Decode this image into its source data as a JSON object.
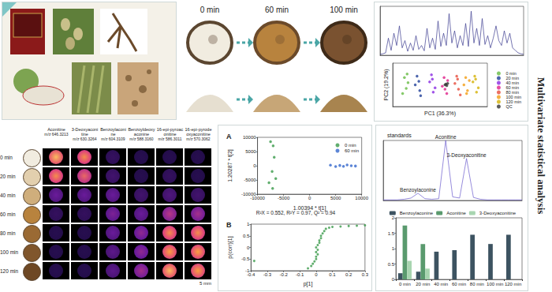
{
  "side_title": "Multivariate statistical analysis",
  "processing": {
    "times": [
      "0 min",
      "60 min",
      "100 min"
    ]
  },
  "msi": {
    "rows": [
      "0 min",
      "20 min",
      "40 min",
      "60 min",
      "80 min",
      "100 min",
      "120 min"
    ],
    "columns": [
      {
        "name": "Aconitine",
        "mz": "m/z 646.3213"
      },
      {
        "name": "3-Deoxyaconitine",
        "mz": "m/z 630.3264"
      },
      {
        "name": "Benzoylaconine",
        "mz": "m/z 604.3109"
      },
      {
        "name": "Benzoyldeoxyaconine",
        "mz": "m/z 588.3160"
      },
      {
        "name": "16-epi-pyroaconitine",
        "mz": "m/z 586.3011"
      },
      {
        "name": "16-epi-pyrodeoxyaconitine",
        "mz": "m/z 570.3062"
      }
    ],
    "scale_bar": "5 mm",
    "intensity": [
      [
        0.9,
        0.8,
        0.1,
        0.05,
        0.05,
        0.05
      ],
      [
        0.8,
        0.7,
        0.15,
        0.05,
        0.1,
        0.05
      ],
      [
        0.3,
        0.3,
        0.3,
        0.15,
        0.2,
        0.15
      ],
      [
        0.1,
        0.1,
        0.35,
        0.3,
        0.5,
        0.45
      ],
      [
        0.05,
        0.05,
        0.3,
        0.4,
        0.8,
        0.8
      ],
      [
        0.05,
        0.05,
        0.25,
        0.4,
        0.85,
        0.85
      ],
      [
        0.05,
        0.05,
        0.25,
        0.45,
        0.9,
        0.85
      ]
    ]
  },
  "chart_data": [
    {
      "type": "line",
      "color": "#3b3b8f",
      "tick_labels": false,
      "xlim": [
        0,
        26
      ],
      "ylim": [
        0,
        100
      ],
      "x": [
        0,
        0.5,
        1,
        1.5,
        2,
        2.5,
        3,
        3.5,
        4,
        4.5,
        5,
        5.5,
        6,
        6.5,
        7,
        7.5,
        8,
        8.5,
        9,
        9.5,
        10,
        10.5,
        11,
        11.5,
        12,
        12.5,
        13,
        13.5,
        14,
        14.5,
        15,
        15.5,
        16,
        16.5,
        17,
        17.5,
        18,
        18.5,
        19,
        19.5,
        20,
        20.5,
        21,
        21.5,
        22,
        22.5,
        23,
        23.5,
        24,
        24.5,
        25,
        25.5,
        26
      ],
      "values": [
        2,
        3,
        5,
        35,
        10,
        45,
        20,
        60,
        15,
        30,
        8,
        25,
        10,
        40,
        12,
        20,
        9,
        55,
        15,
        35,
        12,
        70,
        18,
        45,
        20,
        85,
        25,
        50,
        15,
        40,
        20,
        65,
        18,
        90,
        25,
        55,
        20,
        75,
        22,
        40,
        15,
        35,
        60,
        30,
        20,
        50,
        25,
        45,
        15,
        10,
        5,
        3,
        2
      ]
    },
    {
      "type": "scatter",
      "x_label": "PC1 (36.3%)",
      "y_label": "PC2 (19.2%)",
      "tick_labels": false,
      "legend": "right",
      "xlim": [
        -55,
        50
      ],
      "ylim": [
        -30,
        30
      ],
      "series": [
        {
          "name": "0 min",
          "color": "#66bb44",
          "x": [
            -42,
            -40,
            -38,
            -44,
            -39
          ],
          "values": [
            10,
            -5,
            3,
            -12,
            15
          ]
        },
        {
          "name": "20 min",
          "color": "#1f3f99",
          "x": [
            -28,
            -25,
            -30,
            -26,
            -24
          ],
          "values": [
            12,
            -8,
            0,
            5,
            -15
          ]
        },
        {
          "name": "40 min",
          "color": "#8a2be2",
          "x": [
            -12,
            -10,
            -14,
            -8,
            -11
          ],
          "values": [
            14,
            -10,
            4,
            -4,
            8
          ]
        },
        {
          "name": "60 min",
          "color": "#e0218a",
          "x": [
            2,
            5,
            0,
            6,
            3
          ],
          "values": [
            10,
            -12,
            -2,
            6,
            -6
          ]
        },
        {
          "name": "80 min",
          "color": "#e74c3c",
          "x": [
            16,
            18,
            14,
            20,
            17
          ],
          "values": [
            12,
            -6,
            2,
            -14,
            8
          ]
        },
        {
          "name": "100 min",
          "color": "#f39c12",
          "x": [
            26,
            28,
            24,
            30,
            27
          ],
          "values": [
            10,
            -8,
            0,
            6,
            -12
          ]
        },
        {
          "name": "120 min",
          "color": "#d4b106",
          "x": [
            36,
            38,
            34,
            40,
            37
          ],
          "values": [
            12,
            -10,
            4,
            -4,
            8
          ]
        },
        {
          "name": "QC",
          "color": "#333333",
          "x": [
            4,
            5,
            3,
            6
          ],
          "values": [
            1,
            -1,
            0,
            2
          ]
        }
      ]
    },
    {
      "type": "scatter",
      "title": "A",
      "x_label": "1.00394 * t[1]",
      "y_label": "1.20287 * t[2]",
      "annotation": "R²X = 0.552, R²Y = 0.97, Q² = 0.94",
      "legend": "top-right",
      "xlim": [
        -10000,
        10000
      ],
      "xticks": [
        -10000,
        -5000,
        0,
        5000,
        10000
      ],
      "ylim": [
        -10000,
        10000
      ],
      "yticks": [
        -10000,
        -5000,
        0,
        5000,
        10000
      ],
      "series": [
        {
          "name": "0 min",
          "color": "#3a9a4a",
          "x": [
            -7500,
            -7000,
            -6800,
            -7200,
            -6500,
            -7800,
            -7100
          ],
          "values": [
            8500,
            7000,
            3000,
            -2000,
            -4500,
            -6000,
            -8000
          ]
        },
        {
          "name": "60 min",
          "color": "#3366cc",
          "x": [
            4000,
            5000,
            5800,
            6500,
            7200,
            8000,
            8800
          ],
          "values": [
            200,
            -300,
            100,
            -200,
            300,
            0,
            -100
          ]
        }
      ]
    },
    {
      "type": "scatter",
      "title": "B",
      "x_label": "p[1]",
      "y_label": "p(corr)[1]",
      "color": "#3a9a4a",
      "xlim": [
        -0.4,
        0.3
      ],
      "xticks": [
        -0.4,
        -0.3,
        -0.2,
        -0.1,
        0,
        0.1,
        0.2,
        0.3
      ],
      "ylim": [
        -1,
        1
      ],
      "yticks": [
        -1,
        -0.5,
        0,
        0.5,
        1
      ],
      "x": [
        -0.38,
        -0.05,
        -0.03,
        -0.02,
        -0.01,
        0,
        0,
        0.01,
        0,
        0.01,
        0,
        0.01,
        0.02,
        0.02,
        0.03,
        0.03,
        0.04,
        0.05,
        0.06,
        0.08,
        0.1,
        0.15,
        0.2,
        0.25,
        0.3
      ],
      "values": [
        -0.58,
        -0.9,
        -0.8,
        -0.7,
        -0.6,
        -0.5,
        -0.4,
        -0.3,
        -0.2,
        -0.1,
        0,
        0.1,
        0.2,
        0.3,
        0.4,
        0.5,
        0.6,
        0.7,
        0.8,
        0.85,
        0.88,
        0.9,
        0.92,
        0.93,
        0.95
      ]
    },
    {
      "type": "line",
      "title": "standards",
      "color": "#6a5acd",
      "tick_labels": false,
      "xlim": [
        0,
        10
      ],
      "ylim": [
        0,
        100
      ],
      "x": [
        0,
        0.5,
        1,
        1.5,
        2,
        2.5,
        3,
        3.5,
        4,
        4.5,
        5,
        5.5,
        6,
        6.5,
        7,
        7.5,
        8,
        8.5,
        9,
        9.5,
        10
      ],
      "values": [
        1,
        1,
        1,
        2,
        4,
        12,
        3,
        2,
        3,
        100,
        6,
        4,
        70,
        5,
        2,
        1,
        1,
        1,
        1,
        1,
        1
      ],
      "annotations": [
        {
          "x": 2.5,
          "text": "Benzoylaconine"
        },
        {
          "x": 4.5,
          "text": "Aconitine"
        },
        {
          "x": 6,
          "text": "3-Deoxyaconitine"
        }
      ]
    },
    {
      "type": "bar",
      "legend": "top",
      "categories": [
        "0 min",
        "20 min",
        "40 min",
        "60 min",
        "80 min",
        "100 min",
        "120 min"
      ],
      "ylim": [
        0,
        2
      ],
      "yticks": [
        0,
        0.5,
        1,
        1.5,
        2
      ],
      "series": [
        {
          "name": "Benzoylaconine",
          "color": "#3d5361",
          "values": [
            0.2,
            0.25,
            0.9,
            0.95,
            1.45,
            1.15,
            1.45
          ]
        },
        {
          "name": "Aconitine",
          "color": "#5a9a6e",
          "values": [
            1.75,
            1.15,
            0,
            0,
            0,
            0,
            0
          ]
        },
        {
          "name": "3-Deoxyaconitine",
          "color": "#a8d5b0",
          "values": [
            0.6,
            0.35,
            0,
            0,
            0,
            0,
            0
          ]
        }
      ]
    }
  ]
}
